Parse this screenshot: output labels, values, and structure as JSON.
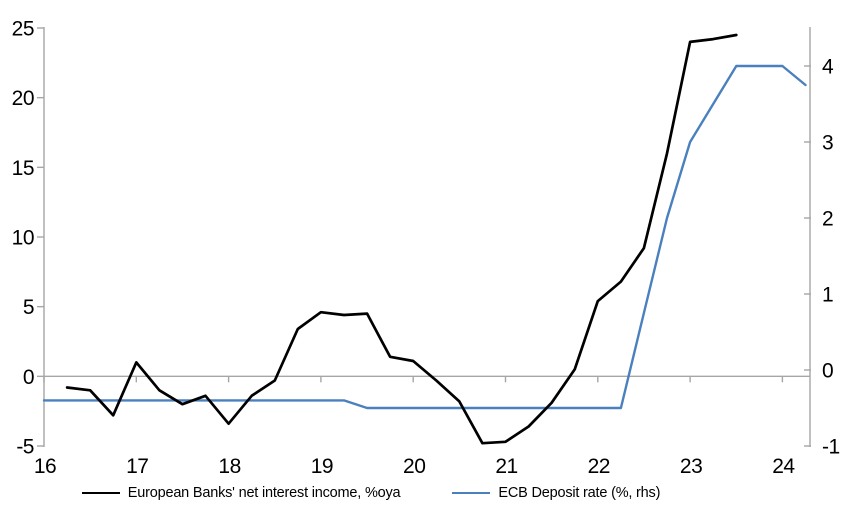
{
  "chart_data": {
    "type": "line",
    "title": "",
    "background": "#ffffff",
    "axis_color": "#a6a6a6",
    "grid": "zero-line-only",
    "legend_position": "bottom",
    "x_axis": {
      "tick_labels": [
        "16",
        "17",
        "18",
        "19",
        "20",
        "21",
        "22",
        "23",
        "24"
      ],
      "tick_values": [
        16,
        17,
        18,
        19,
        20,
        21,
        22,
        23,
        24
      ],
      "range": [
        16,
        24.3
      ]
    },
    "left_axis": {
      "tick_values": [
        25,
        20,
        15,
        10,
        5,
        0,
        -5
      ],
      "range": [
        -5,
        25
      ]
    },
    "right_axis": {
      "tick_values": [
        4,
        3,
        2,
        1,
        0,
        -1
      ],
      "range": [
        -1,
        4.5
      ]
    },
    "series": [
      {
        "name": "ECB Deposit rate (%, rhs)",
        "color": "#4a80bd",
        "axis": "right",
        "x_start": 16.0,
        "x_step": 0.25,
        "values": [
          -0.4,
          -0.4,
          -0.4,
          -0.4,
          -0.4,
          -0.4,
          -0.4,
          -0.4,
          -0.4,
          -0.4,
          -0.4,
          -0.4,
          -0.4,
          -0.4,
          -0.5,
          -0.5,
          -0.5,
          -0.5,
          -0.5,
          -0.5,
          -0.5,
          -0.5,
          -0.5,
          -0.5,
          -0.5,
          -0.5,
          0.75,
          2.0,
          3.0,
          3.5,
          4.0,
          4.0,
          4.0,
          3.75
        ]
      },
      {
        "name": "European Banks' net interest income, %oya",
        "color": "#000000",
        "axis": "left",
        "x_start": 16.25,
        "x_step": 0.25,
        "values": [
          -0.8,
          -1.0,
          -2.8,
          1.0,
          -1.0,
          -2.0,
          -1.4,
          -3.4,
          -1.4,
          -0.3,
          3.4,
          4.6,
          4.4,
          4.5,
          1.4,
          1.1,
          -0.3,
          -1.8,
          -4.8,
          -4.7,
          -3.6,
          -1.9,
          0.5,
          5.4,
          6.8,
          9.2,
          16.0,
          24.0,
          24.2,
          24.5
        ]
      }
    ],
    "legend": [
      {
        "label": "European Banks' net interest income, %oya",
        "color": "#000000"
      },
      {
        "label": "ECB Deposit rate (%, rhs)",
        "color": "#4a80bd"
      }
    ]
  }
}
